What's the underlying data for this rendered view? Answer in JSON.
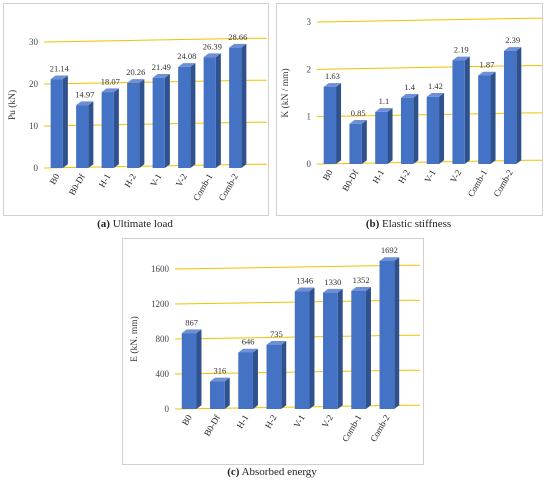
{
  "captions": [
    {
      "tag": "(a)",
      "text": "Ultimate load"
    },
    {
      "tag": "(b)",
      "text": "Elastic stiffness"
    },
    {
      "tag": "(c)",
      "text": "Absorbed energy"
    }
  ],
  "colors": {
    "bar_front": "#4472C4",
    "bar_side": "#2F528F",
    "bar_top": "#6C8FD6",
    "grid": "#F2C200"
  },
  "chart_data": [
    {
      "type": "bar",
      "categories": [
        "B0",
        "B0-Df",
        "H-1",
        "H-2",
        "V-1",
        "V-2",
        "Comb-1",
        "Comb-2"
      ],
      "values": [
        21.14,
        14.97,
        18.07,
        20.26,
        21.49,
        24.08,
        26.39,
        28.66
      ],
      "value_labels": [
        "21.14",
        "14.97",
        "18.07",
        "20.26",
        "21.49",
        "24.08",
        "26.39",
        "28.66"
      ],
      "ylabel": "Pu (kN)",
      "ylim": [
        0,
        30
      ],
      "yticks": [
        "0",
        "10",
        "20",
        "30"
      ],
      "grid": true
    },
    {
      "type": "bar",
      "categories": [
        "B0",
        "B0-Df",
        "H-1",
        "H-2",
        "V-1",
        "V-2",
        "Comb-1",
        "Comb-2"
      ],
      "values": [
        1.63,
        0.85,
        1.1,
        1.4,
        1.42,
        2.19,
        1.87,
        2.39
      ],
      "value_labels": [
        "1.63",
        "0.85",
        "1.1",
        "1.4",
        "1.42",
        "2.19",
        "1.87",
        "2.39"
      ],
      "ylabel": "K (kN / mm)",
      "ylim": [
        0,
        3
      ],
      "yticks": [
        "0",
        "1",
        "2",
        "3"
      ],
      "grid": true
    },
    {
      "type": "bar",
      "categories": [
        "B0",
        "B0-Df",
        "H-1",
        "H-2",
        "V-1",
        "V-2",
        "Comb-1",
        "Comb-2"
      ],
      "values": [
        867,
        316,
        646,
        735,
        1346,
        1330,
        1352,
        1692
      ],
      "value_labels": [
        "867",
        "316",
        "646",
        "735",
        "1346",
        "1330",
        "1352",
        "1692"
      ],
      "ylabel": "E (kN. mm)",
      "ylim": [
        0,
        1600
      ],
      "yticks": [
        "0",
        "400",
        "800",
        "1200",
        "1600"
      ],
      "grid": true
    }
  ]
}
